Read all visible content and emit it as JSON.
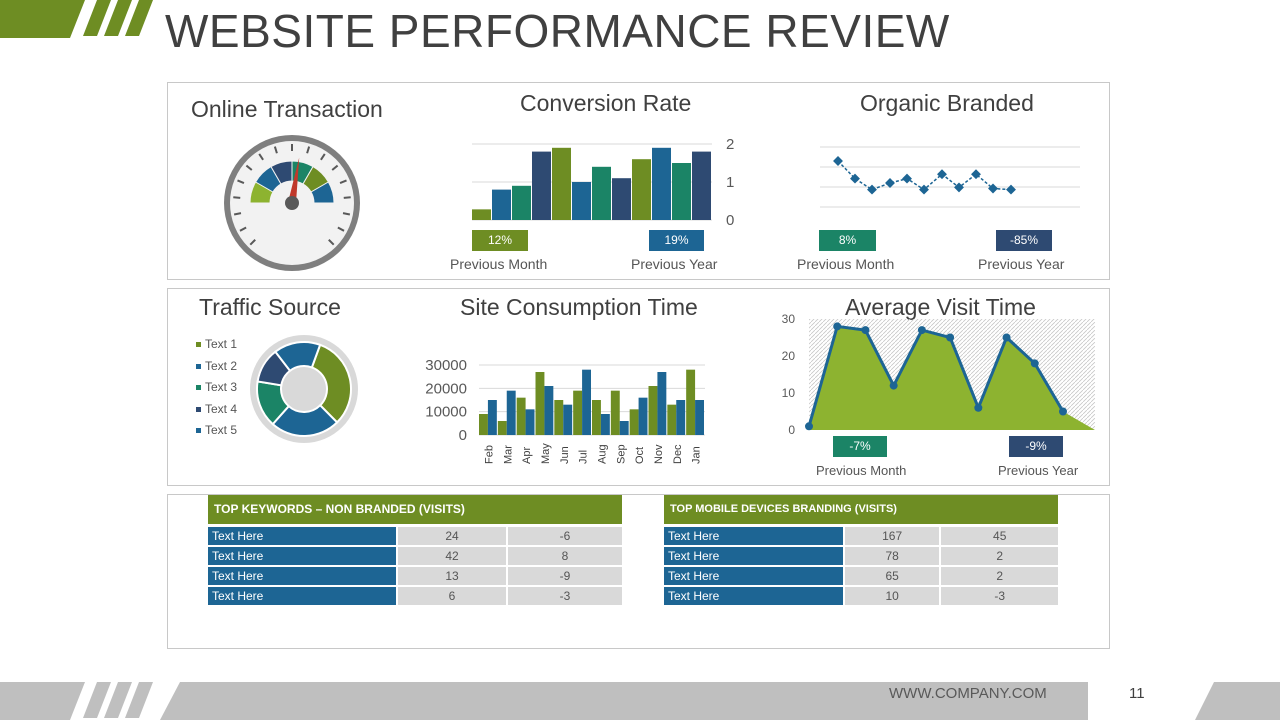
{
  "header": {
    "title": "WEBSITE PERFORMANCE REVIEW"
  },
  "colors": {
    "green": "#6e8d23",
    "blue": "#1d6594",
    "navy": "#2e4a72",
    "teal": "#1b8466",
    "lime": "#8db330"
  },
  "online_transaction": {
    "title": "Online Transaction"
  },
  "conversion_rate": {
    "title": "Conversion Rate",
    "badge_left": "12%",
    "badge_right": "19%",
    "caption_left": "Previous Month",
    "caption_right": "Previous Year"
  },
  "organic_branded": {
    "title": "Organic Branded",
    "badge_left": "8%",
    "badge_right": "-85%",
    "caption_left": "Previous Month",
    "caption_right": "Previous Year"
  },
  "traffic_source": {
    "title": "Traffic Source",
    "legend": [
      {
        "label": "Text 1",
        "color": "#6e8d23"
      },
      {
        "label": "Text 2",
        "color": "#1d6594"
      },
      {
        "label": "Text 3",
        "color": "#1b8466"
      },
      {
        "label": "Text 4",
        "color": "#2e4a72"
      },
      {
        "label": "Text 5",
        "color": "#1d6594"
      }
    ]
  },
  "site_consumption": {
    "title": "Site Consumption Time"
  },
  "average_visit": {
    "title": "Average  Visit Time",
    "badge_left": "-7%",
    "badge_right": "-9%",
    "caption_left": "Previous  Month",
    "caption_right": "Previous  Year"
  },
  "table_keywords": {
    "title": "TOP KEYWORDS  – NON BRANDED  (VISITS)",
    "rows": [
      [
        "Text Here",
        "24",
        "-6"
      ],
      [
        "Text Here",
        "42",
        "8"
      ],
      [
        "Text Here",
        "13",
        "-9"
      ],
      [
        "Text Here",
        "6",
        "-3"
      ]
    ]
  },
  "table_mobile": {
    "title": "TOP MOBILE DEVICES  BRANDING  (VISITS)",
    "rows": [
      [
        "Text Here",
        "167",
        "45"
      ],
      [
        "Text Here",
        "78",
        "2"
      ],
      [
        "Text Here",
        "65",
        "2"
      ],
      [
        "Text Here",
        "10",
        "-3"
      ]
    ]
  },
  "footer": {
    "url": "WWW.COMPANY.COM",
    "page": "11"
  },
  "chart_data": [
    {
      "type": "gauge",
      "title": "Online Transaction",
      "segments": [
        "#8db330",
        "#1d6594",
        "#2e4a72",
        "#1b8466",
        "#6e8d23",
        "#1d6594"
      ],
      "needle_fraction": 0.55
    },
    {
      "type": "bar",
      "title": "Conversion Rate",
      "ylim": [
        0,
        2
      ],
      "yticks": [
        "0",
        "1",
        "2"
      ],
      "values": [
        0.28,
        0.8,
        0.9,
        1.8,
        1.9,
        1.0,
        1.4,
        1.1,
        1.6,
        1.9,
        1.5,
        1.8
      ],
      "colors": [
        "#6e8d23",
        "#1d6594",
        "#1b8466",
        "#2e4a72",
        "#6e8d23",
        "#1d6594",
        "#1b8466",
        "#2e4a72",
        "#6e8d23",
        "#1d6594",
        "#1b8466",
        "#2e4a72"
      ]
    },
    {
      "type": "line",
      "title": "Organic Branded",
      "values": [
        3.0,
        2.2,
        1.7,
        2.0,
        2.2,
        1.7,
        2.4,
        1.8,
        2.4,
        1.75,
        1.7
      ]
    },
    {
      "type": "pie",
      "title": "Traffic Source",
      "labels": [
        "Text 1",
        "Text 2",
        "Text 3",
        "Text 4",
        "Text 5"
      ],
      "values": [
        32,
        24,
        16,
        12,
        16
      ],
      "colors": [
        "#6e8d23",
        "#1d6594",
        "#1b8466",
        "#2e4a72",
        "#1d6594"
      ]
    },
    {
      "type": "bar",
      "title": "Site Consumption Time",
      "categories": [
        "Feb",
        "Mar",
        "Apr",
        "May",
        "Jun",
        "Jul",
        "Aug",
        "Sep",
        "Oct",
        "Nov",
        "Dec",
        "Jan"
      ],
      "yticks": [
        "0",
        "10000",
        "20000",
        "30000"
      ],
      "ylim": [
        0,
        30000
      ],
      "series": [
        {
          "color": "#6e8d23",
          "values": [
            9000,
            6000,
            16000,
            27000,
            15000,
            19000,
            15000,
            19000,
            11000,
            21000,
            13000,
            28000
          ]
        },
        {
          "color": "#1d6594",
          "values": [
            15000,
            19000,
            11000,
            21000,
            13000,
            28000,
            9000,
            6000,
            16000,
            27000,
            15000,
            15000
          ]
        }
      ]
    },
    {
      "type": "area",
      "title": "Average  Visit Time",
      "ylim": [
        0,
        30
      ],
      "yticks": [
        "0",
        "10",
        "20",
        "30"
      ],
      "values": [
        1,
        28,
        27,
        12,
        27,
        25,
        6,
        25,
        18,
        5
      ]
    }
  ]
}
